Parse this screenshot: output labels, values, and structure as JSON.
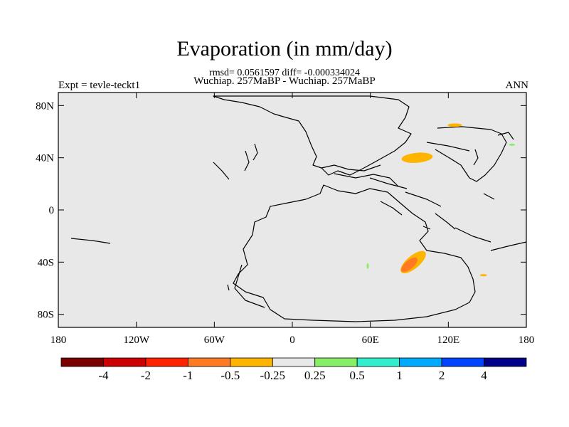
{
  "title": "Evaporation (in mm/day)",
  "subtitle_stats": "rmsd= 0.0561597 diff= -0.000334024",
  "subtitle_case": "Wuchiap. 257MaBP - Wuchiap. 257MaBP",
  "expt_label": "Expt = tevle-teckt1",
  "season_label": "ANN",
  "map": {
    "projection": "cylindrical-equidistant",
    "lon_range": [
      -180,
      180
    ],
    "lat_range": [
      -90,
      90
    ],
    "background_color": "#e8e8e8",
    "lon_ticks": [
      {
        "value": -180,
        "label": "180"
      },
      {
        "value": -120,
        "label": "120W"
      },
      {
        "value": -60,
        "label": "60W"
      },
      {
        "value": 0,
        "label": "0"
      },
      {
        "value": 60,
        "label": "60E"
      },
      {
        "value": 120,
        "label": "120E"
      },
      {
        "value": 180,
        "label": "180"
      }
    ],
    "lat_ticks": [
      {
        "value": 80,
        "label": "80N"
      },
      {
        "value": 40,
        "label": "40N"
      },
      {
        "value": 0,
        "label": "0"
      },
      {
        "value": -40,
        "label": "40S"
      },
      {
        "value": -80,
        "label": "80S"
      }
    ]
  },
  "colorbar": {
    "colors": [
      "#7a0000",
      "#cc0000",
      "#ff2200",
      "#ff7a22",
      "#ffb400",
      "#e8e8e8",
      "#88ee66",
      "#33eecc",
      "#00aaff",
      "#0044ff",
      "#000088"
    ],
    "labels": [
      "-4",
      "-2",
      "-1",
      "-0.5",
      "-0.25",
      "0.25",
      "0.5",
      "1",
      "2",
      "4"
    ]
  },
  "anomalies": [
    {
      "name": "anomaly-east-asia-north",
      "lon": 96,
      "lat": 40,
      "color": "#ffb400"
    },
    {
      "name": "anomaly-siberia",
      "lon": 125,
      "lat": 65,
      "color": "#ffb400"
    },
    {
      "name": "anomaly-south-core",
      "lon": 90,
      "lat": -42,
      "color": "#ff7a22"
    },
    {
      "name": "anomaly-south-outer",
      "lon": 93,
      "lat": -40,
      "color": "#ffb400"
    },
    {
      "name": "anomaly-east-small",
      "lon": 147,
      "lat": -50,
      "color": "#ffb400"
    },
    {
      "name": "anomaly-green-ne",
      "lon": 169,
      "lat": 50,
      "color": "#88ee66"
    },
    {
      "name": "anomaly-green-south",
      "lon": 58,
      "lat": -43,
      "color": "#88ee66"
    }
  ]
}
